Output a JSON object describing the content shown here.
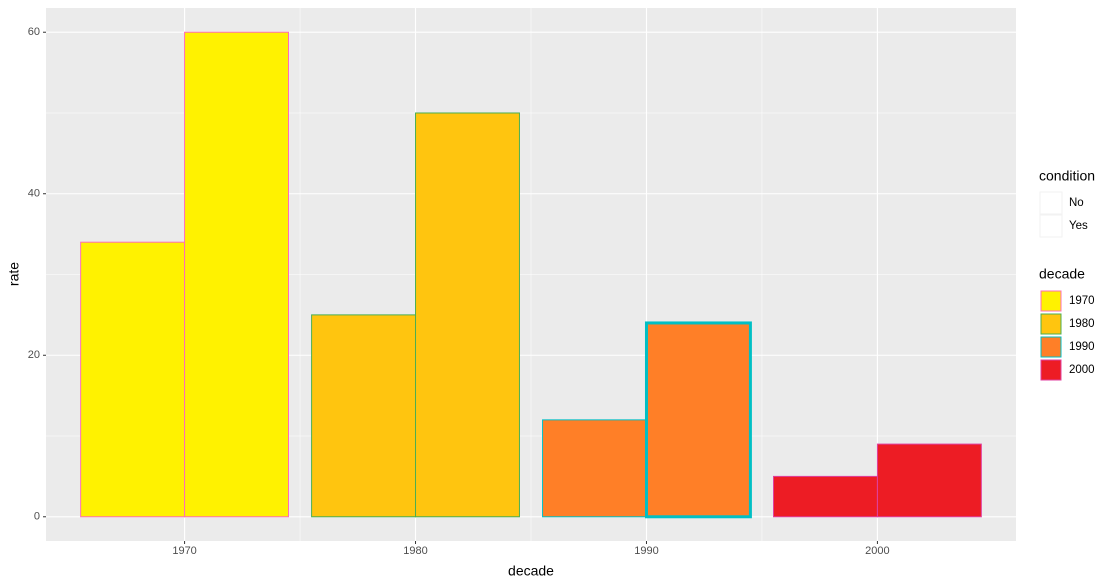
{
  "chart_data": {
    "type": "bar",
    "x_label": "decade",
    "y_label": "rate",
    "categories": [
      1970,
      1980,
      1990,
      2000
    ],
    "series": [
      {
        "name": "No",
        "values": [
          34,
          25,
          12,
          5
        ]
      },
      {
        "name": "Yes",
        "values": [
          60,
          50,
          24,
          9
        ]
      }
    ],
    "colors": [
      "#FFF200",
      "#FFC50F",
      "#FF7F27",
      "#ED1C24"
    ],
    "outline_colors": [
      "#FF6EB4",
      "#4CAF50",
      "#00BFC4",
      "#E040A0"
    ],
    "xlim": [
      1964,
      2006
    ],
    "xticks": [
      1970,
      1980,
      1990,
      2000
    ],
    "ylim": [
      -3,
      63
    ],
    "yticks": [
      0,
      20,
      40,
      60
    ],
    "grid": true,
    "legend_position": "right",
    "legend_titles": [
      "condition",
      "decade"
    ]
  }
}
